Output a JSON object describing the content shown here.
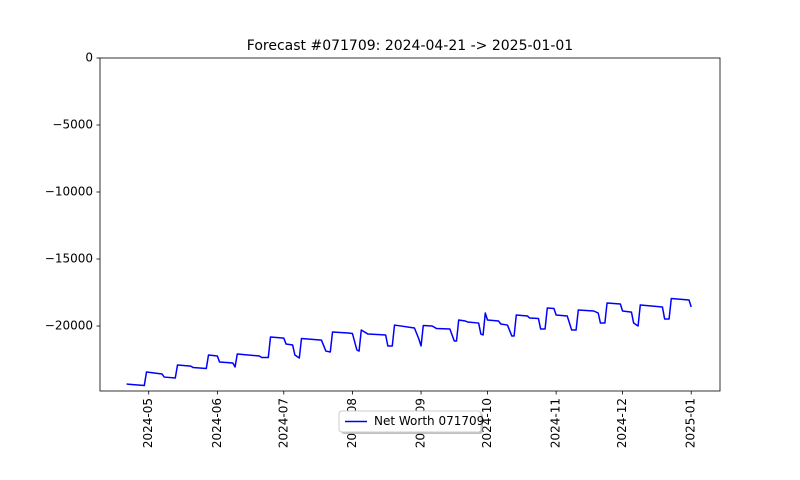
{
  "chart_data": {
    "type": "line",
    "title": "Forecast #071709: 2024-04-21 -> 2025-01-01",
    "x": [
      "2024-04-21",
      "2024-04-29",
      "2024-04-30",
      "2024-05-07",
      "2024-05-08",
      "2024-05-13",
      "2024-05-14",
      "2024-05-20",
      "2024-05-21",
      "2024-05-27",
      "2024-05-28",
      "2024-06-01",
      "2024-06-02",
      "2024-06-08",
      "2024-06-09",
      "2024-06-10",
      "2024-06-20",
      "2024-06-21",
      "2024-06-24",
      "2024-06-25",
      "2024-07-01",
      "2024-07-02",
      "2024-07-05",
      "2024-07-06",
      "2024-07-08",
      "2024-07-09",
      "2024-07-18",
      "2024-07-20",
      "2024-07-22",
      "2024-07-23",
      "2024-07-30",
      "2024-08-01",
      "2024-08-03",
      "2024-08-04",
      "2024-08-05",
      "2024-08-08",
      "2024-08-16",
      "2024-08-17",
      "2024-08-19",
      "2024-08-20",
      "2024-08-29",
      "2024-08-31",
      "2024-09-01",
      "2024-09-02",
      "2024-09-06",
      "2024-09-08",
      "2024-09-14",
      "2024-09-16",
      "2024-09-17",
      "2024-09-18",
      "2024-09-21",
      "2024-09-22",
      "2024-09-27",
      "2024-09-28",
      "2024-09-29",
      "2024-09-30",
      "2024-10-01",
      "2024-10-06",
      "2024-10-07",
      "2024-10-10",
      "2024-10-12",
      "2024-10-13",
      "2024-10-14",
      "2024-10-19",
      "2024-10-20",
      "2024-10-24",
      "2024-10-25",
      "2024-10-27",
      "2024-10-28",
      "2024-10-31",
      "2024-11-01",
      "2024-11-06",
      "2024-11-08",
      "2024-11-10",
      "2024-11-11",
      "2024-11-18",
      "2024-11-20",
      "2024-11-21",
      "2024-11-23",
      "2024-11-24",
      "2024-11-30",
      "2024-12-01",
      "2024-12-05",
      "2024-12-06",
      "2024-12-08",
      "2024-12-09",
      "2024-12-19",
      "2024-12-20",
      "2024-12-22",
      "2024-12-23",
      "2024-12-31",
      "2025-01-01"
    ],
    "series": [
      {
        "name": "Net Worth 071709",
        "color": "#0000ff",
        "values": [
          -24330,
          -24440,
          -23430,
          -23580,
          -23810,
          -23880,
          -22910,
          -22990,
          -23100,
          -23170,
          -22160,
          -22240,
          -22690,
          -22760,
          -23060,
          -22090,
          -22240,
          -22350,
          -22350,
          -20820,
          -20900,
          -21340,
          -21420,
          -22160,
          -22390,
          -20930,
          -21050,
          -21870,
          -21940,
          -20450,
          -20520,
          -20560,
          -21790,
          -21870,
          -20300,
          -20600,
          -20670,
          -21490,
          -21490,
          -19930,
          -20150,
          -20970,
          -21490,
          -19960,
          -20000,
          -20190,
          -20220,
          -21120,
          -21120,
          -19550,
          -19630,
          -19700,
          -19780,
          -20600,
          -20670,
          -19030,
          -19550,
          -19630,
          -19850,
          -19930,
          -20750,
          -20750,
          -19180,
          -19250,
          -19400,
          -19440,
          -20220,
          -20220,
          -18660,
          -18690,
          -19180,
          -19250,
          -20300,
          -20300,
          -18810,
          -18880,
          -19030,
          -19780,
          -19780,
          -18280,
          -18360,
          -18880,
          -18960,
          -19780,
          -20000,
          -18430,
          -18580,
          -19480,
          -19480,
          -17950,
          -18060,
          -18580
        ]
      }
    ],
    "xlim": [
      "2024-04-09",
      "2025-01-14"
    ],
    "xticks": [
      {
        "value": "2024-05-01",
        "label": "2024-05"
      },
      {
        "value": "2024-06-01",
        "label": "2024-06"
      },
      {
        "value": "2024-07-01",
        "label": "2024-07"
      },
      {
        "value": "2024-08-01",
        "label": "2024-08"
      },
      {
        "value": "2024-09-01",
        "label": "2024-09"
      },
      {
        "value": "2024-10-01",
        "label": "2024-10"
      },
      {
        "value": "2024-11-01",
        "label": "2024-11"
      },
      {
        "value": "2024-12-01",
        "label": "2024-12"
      },
      {
        "value": "2025-01-01",
        "label": "2025-01"
      }
    ],
    "ylim": [
      -24850,
      0
    ],
    "yticks": [
      0,
      {
        "value": -5000,
        "label": "−5000"
      },
      {
        "value": -10000,
        "label": "−10000"
      },
      {
        "value": -15000,
        "label": "−15000"
      },
      {
        "value": -20000,
        "label": "−20000"
      }
    ],
    "legend": "lower center"
  }
}
